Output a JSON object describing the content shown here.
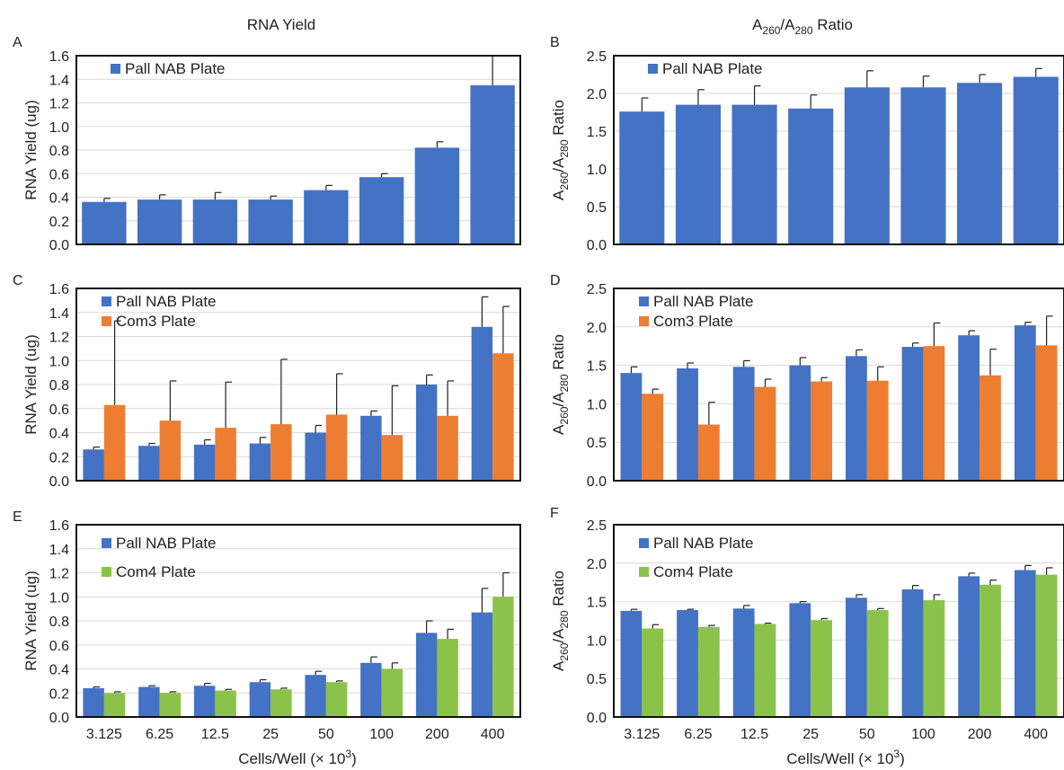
{
  "column_titles": {
    "left": "RNA Yield",
    "right_prefix": "A",
    "right_sub1": "260",
    "right_mid": "/A",
    "right_sub2": "280",
    "right_suffix": " Ratio"
  },
  "xaxis_title": {
    "main": "Cells/Well (× 10",
    "sup": "3",
    "close": ")"
  },
  "colors": {
    "pall": "#4472C4",
    "com3": "#ED7D31",
    "com4": "#8BC34A"
  },
  "chart_data": [
    {
      "panel": "A",
      "type": "bar",
      "categories": [
        "3.125",
        "6.25",
        "12.5",
        "25",
        "50",
        "100",
        "200",
        "400"
      ],
      "ylabel": "RNA Yield (ug)",
      "ylim": [
        0,
        1.6
      ],
      "ystep": 0.2,
      "ydecimals": 1,
      "show_xticks": false,
      "legend_position": "top-left",
      "grid": true,
      "series": [
        {
          "name": "Pall NAB Plate",
          "color": "#4472C4",
          "values": [
            0.36,
            0.38,
            0.38,
            0.38,
            0.46,
            0.57,
            0.82,
            1.35
          ],
          "errors": [
            0.03,
            0.04,
            0.06,
            0.03,
            0.04,
            0.03,
            0.05,
            0.25
          ]
        }
      ]
    },
    {
      "panel": "B",
      "type": "bar",
      "categories": [
        "3.125",
        "6.25",
        "12.5",
        "25",
        "50",
        "100",
        "200",
        "400"
      ],
      "ylabel_parts": [
        "A",
        "260",
        "/A",
        "280",
        " Ratio"
      ],
      "ylim": [
        0,
        2.5
      ],
      "ystep": 0.5,
      "ydecimals": 1,
      "show_xticks": false,
      "legend_position": "top-left",
      "grid": true,
      "series": [
        {
          "name": "Pall NAB Plate",
          "color": "#4472C4",
          "values": [
            1.76,
            1.85,
            1.85,
            1.8,
            2.08,
            2.08,
            2.14,
            2.22
          ],
          "errors": [
            0.18,
            0.2,
            0.25,
            0.18,
            0.22,
            0.15,
            0.11,
            0.11
          ]
        }
      ]
    },
    {
      "panel": "C",
      "type": "bar",
      "categories": [
        "3.125",
        "6.25",
        "12.5",
        "25",
        "50",
        "100",
        "200",
        "400"
      ],
      "ylabel": "RNA Yield (ug)",
      "ylim": [
        0,
        1.6
      ],
      "ystep": 0.2,
      "ydecimals": 1,
      "show_xticks": false,
      "legend_position": "top-left",
      "grid": true,
      "series": [
        {
          "name": "Pall NAB Plate",
          "color": "#4472C4",
          "values": [
            0.26,
            0.29,
            0.3,
            0.31,
            0.4,
            0.54,
            0.8,
            1.28
          ],
          "errors": [
            0.02,
            0.02,
            0.04,
            0.05,
            0.06,
            0.04,
            0.08,
            0.25
          ]
        },
        {
          "name": "Com3 Plate",
          "color": "#ED7D31",
          "values": [
            0.63,
            0.5,
            0.44,
            0.47,
            0.55,
            0.38,
            0.54,
            1.06
          ],
          "errors": [
            0.7,
            0.33,
            0.38,
            0.54,
            0.34,
            0.41,
            0.29,
            0.39
          ]
        }
      ]
    },
    {
      "panel": "D",
      "type": "bar",
      "categories": [
        "3.125",
        "6.25",
        "12.5",
        "25",
        "50",
        "100",
        "200",
        "400"
      ],
      "ylabel_parts": [
        "A",
        "260",
        "/A",
        "280",
        " Ratio"
      ],
      "ylim": [
        0,
        2.5
      ],
      "ystep": 0.5,
      "ydecimals": 1,
      "show_xticks": false,
      "legend_position": "top-left",
      "grid": true,
      "series": [
        {
          "name": "Pall NAB Plate",
          "color": "#4472C4",
          "values": [
            1.4,
            1.46,
            1.48,
            1.5,
            1.62,
            1.74,
            1.89,
            2.02
          ],
          "errors": [
            0.08,
            0.07,
            0.08,
            0.1,
            0.08,
            0.05,
            0.06,
            0.04
          ]
        },
        {
          "name": "Com3 Plate",
          "color": "#ED7D31",
          "values": [
            1.13,
            0.73,
            1.22,
            1.29,
            1.3,
            1.75,
            1.37,
            1.76
          ],
          "errors": [
            0.06,
            0.29,
            0.1,
            0.05,
            0.18,
            0.3,
            0.34,
            0.38
          ]
        }
      ]
    },
    {
      "panel": "E",
      "type": "bar",
      "categories": [
        "3.125",
        "6.25",
        "12.5",
        "25",
        "50",
        "100",
        "200",
        "400"
      ],
      "ylabel": "RNA Yield (ug)",
      "ylim": [
        0,
        1.6
      ],
      "ystep": 0.2,
      "ydecimals": 1,
      "show_xticks": true,
      "legend_position": "top-left",
      "grid": true,
      "series": [
        {
          "name": "Pall NAB Plate",
          "color": "#4472C4",
          "values": [
            0.24,
            0.25,
            0.26,
            0.29,
            0.35,
            0.45,
            0.7,
            0.87
          ],
          "errors": [
            0.01,
            0.01,
            0.02,
            0.02,
            0.03,
            0.05,
            0.1,
            0.2
          ]
        },
        {
          "name": "Com4 Plate",
          "color": "#8BC34A",
          "values": [
            0.2,
            0.2,
            0.22,
            0.23,
            0.29,
            0.4,
            0.65,
            1.0
          ],
          "errors": [
            0.01,
            0.01,
            0.01,
            0.01,
            0.01,
            0.05,
            0.08,
            0.2
          ]
        }
      ]
    },
    {
      "panel": "F",
      "type": "bar",
      "categories": [
        "3.125",
        "6.25",
        "12.5",
        "25",
        "50",
        "100",
        "200",
        "400"
      ],
      "ylabel_parts": [
        "A",
        "260",
        "/A",
        "280",
        " Ratio"
      ],
      "ylim": [
        0,
        2.5
      ],
      "ystep": 0.5,
      "ydecimals": 1,
      "show_xticks": true,
      "legend_position": "top-left",
      "grid": true,
      "series": [
        {
          "name": "Pall NAB Plate",
          "color": "#4472C4",
          "values": [
            1.38,
            1.39,
            1.41,
            1.48,
            1.55,
            1.66,
            1.83,
            1.91
          ],
          "errors": [
            0.02,
            0.01,
            0.04,
            0.02,
            0.04,
            0.05,
            0.04,
            0.06
          ]
        },
        {
          "name": "Com4 Plate",
          "color": "#8BC34A",
          "values": [
            1.15,
            1.17,
            1.21,
            1.26,
            1.39,
            1.52,
            1.72,
            1.85
          ],
          "errors": [
            0.05,
            0.02,
            0.01,
            0.02,
            0.02,
            0.07,
            0.06,
            0.09
          ]
        }
      ]
    }
  ]
}
